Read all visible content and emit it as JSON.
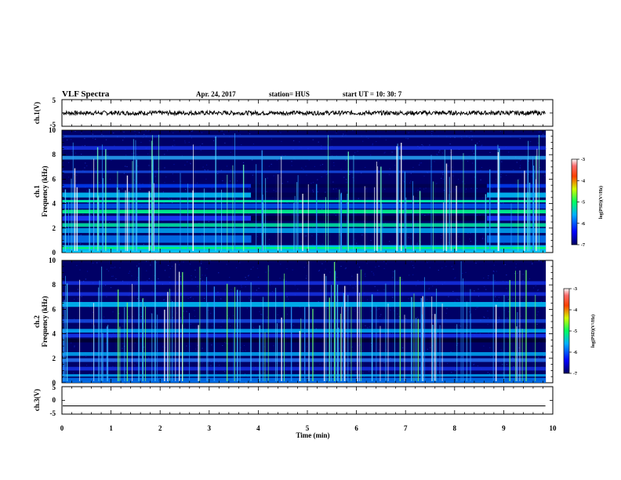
{
  "header": {
    "title": "VLF Spectra",
    "date": "Apr. 24, 2017",
    "station": "station= HUS",
    "start": "start  UT  =   10: 30: 7"
  },
  "chart_data": [
    {
      "type": "line",
      "ylabel": "ch.1(V)",
      "ylim": [
        -5,
        5
      ],
      "yticks": [
        "5",
        "-5"
      ],
      "x": [
        0,
        9.85
      ],
      "values": [
        0,
        0
      ],
      "description_visible": "noisy trace near 0 V"
    },
    {
      "type": "heatmap",
      "ylabel_line1": "ch.1",
      "ylabel_line2": "Frequency  (kHz)",
      "ylim": [
        0,
        10
      ],
      "yticks": [
        "0",
        "2",
        "4",
        "6",
        "8",
        "10"
      ],
      "xlim": [
        0,
        10
      ],
      "colorbar": {
        "label": "log(PSD)(V²/Hz)",
        "ticks": [
          "-3",
          "-4",
          "-5",
          "-6",
          "-7"
        ],
        "range": [
          -7,
          -3
        ]
      }
    },
    {
      "type": "heatmap",
      "ylabel_line1": "ch.2",
      "ylabel_line2": "Frequency  (kHz)",
      "ylim": [
        0,
        10
      ],
      "yticks": [
        "0",
        "2",
        "4",
        "6",
        "8",
        "10"
      ],
      "xlim": [
        0,
        10
      ],
      "colorbar": {
        "label": "log(PSD)(V²/Hz)",
        "ticks": [
          "-3",
          "-4",
          "-5",
          "-6",
          "-7"
        ],
        "range": [
          -7,
          -3
        ]
      }
    },
    {
      "type": "line",
      "ylabel": "ch.3(V)",
      "ylim": [
        -5,
        5
      ],
      "yticks": [
        "5",
        "0",
        "-5"
      ],
      "x": [
        0,
        9.85
      ],
      "values": [
        -2,
        -2
      ],
      "xlabel": "Time  (min)",
      "xticks": [
        "0",
        "1",
        "2",
        "3",
        "4",
        "5",
        "6",
        "7",
        "8",
        "9",
        "10"
      ]
    }
  ],
  "colors": {
    "background": "#000066",
    "band_low": "#0000ff",
    "band_mid": "#00c8ff",
    "band_high": "#00ff99"
  }
}
